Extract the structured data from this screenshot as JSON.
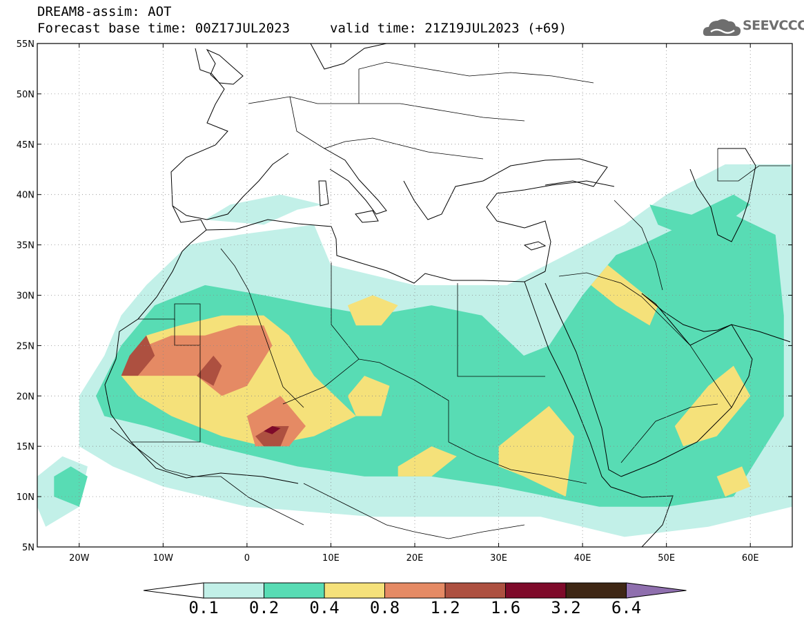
{
  "header": {
    "title_line_1": "DREAM8-assim: AOT",
    "title_line_2": "Forecast base time: 00Z17JUL2023",
    "valid_time": "valid time: 21Z19JUL2023 (+69)"
  },
  "logo": {
    "icon": "cloud-logo-icon",
    "text": "SEEVCCC"
  },
  "map": {
    "projection": "lat-lon",
    "lon_range": [
      -25,
      65
    ],
    "lat_range": [
      5,
      55
    ],
    "grid": "dotted",
    "lat_ticks": [
      {
        "value": 55,
        "label": "55N"
      },
      {
        "value": 50,
        "label": "50N"
      },
      {
        "value": 45,
        "label": "45N"
      },
      {
        "value": 40,
        "label": "40N"
      },
      {
        "value": 35,
        "label": "35N"
      },
      {
        "value": 30,
        "label": "30N"
      },
      {
        "value": 25,
        "label": "25N"
      },
      {
        "value": 20,
        "label": "20N"
      },
      {
        "value": 15,
        "label": "15N"
      },
      {
        "value": 10,
        "label": "10N"
      },
      {
        "value": 5,
        "label": "5N"
      }
    ],
    "lon_ticks": [
      {
        "value": -20,
        "label": "20W"
      },
      {
        "value": -10,
        "label": "10W"
      },
      {
        "value": 0,
        "label": "0"
      },
      {
        "value": 10,
        "label": "10E"
      },
      {
        "value": 20,
        "label": "20E"
      },
      {
        "value": 30,
        "label": "30E"
      },
      {
        "value": 40,
        "label": "40E"
      },
      {
        "value": 50,
        "label": "50E"
      },
      {
        "value": 60,
        "label": "60E"
      }
    ]
  },
  "colorbar": {
    "labels": [
      "0.1",
      "0.2",
      "0.4",
      "0.8",
      "1.2",
      "1.6",
      "3.2",
      "6.4"
    ],
    "below_color": "#ffffff",
    "above_color": "#8f6fae",
    "colors": [
      "#c2f0e8",
      "#58dcb4",
      "#f5e17a",
      "#e58a64",
      "#ad5040",
      "#7e0a2a",
      "#3e2614"
    ]
  },
  "chart_data": {
    "type": "heatmap",
    "variable": "AOT",
    "regions": [
      {
        "level": 0.1,
        "polygon": [
          [
            -20,
            20
          ],
          [
            -17,
            24
          ],
          [
            -15,
            28
          ],
          [
            -12,
            31
          ],
          [
            -7,
            35
          ],
          [
            -1,
            36
          ],
          [
            8,
            37
          ],
          [
            10,
            33
          ],
          [
            20,
            31
          ],
          [
            31,
            31
          ],
          [
            38,
            34
          ],
          [
            45,
            37
          ],
          [
            50,
            40
          ],
          [
            57,
            43
          ],
          [
            65,
            43
          ],
          [
            65,
            9
          ],
          [
            55,
            7
          ],
          [
            45,
            6
          ],
          [
            35,
            8
          ],
          [
            25,
            8
          ],
          [
            15,
            8
          ],
          [
            0,
            9
          ],
          [
            -10,
            11
          ],
          [
            -16,
            13
          ],
          [
            -20,
            15
          ]
        ]
      },
      {
        "level": 0.1,
        "polygon": [
          [
            -25,
            12
          ],
          [
            -22,
            14
          ],
          [
            -19,
            13
          ],
          [
            -20,
            9
          ],
          [
            -24,
            7
          ],
          [
            -25,
            9
          ]
        ]
      },
      {
        "level": 0.1,
        "polygon": [
          [
            -5,
            37.5
          ],
          [
            2,
            37
          ],
          [
            6,
            38.5
          ],
          [
            9,
            39
          ],
          [
            4,
            40
          ],
          [
            -2,
            39
          ]
        ]
      },
      {
        "level": 0.2,
        "polygon": [
          [
            -18,
            20
          ],
          [
            -15,
            25
          ],
          [
            -11,
            29
          ],
          [
            -5,
            31
          ],
          [
            2,
            30
          ],
          [
            8,
            29
          ],
          [
            15,
            28
          ],
          [
            22,
            29
          ],
          [
            28,
            28
          ],
          [
            33,
            24
          ],
          [
            36,
            25
          ],
          [
            40,
            30
          ],
          [
            44,
            34
          ],
          [
            47,
            35
          ],
          [
            52,
            37
          ],
          [
            58,
            38
          ],
          [
            63,
            36
          ],
          [
            64,
            28
          ],
          [
            64,
            18
          ],
          [
            58,
            10
          ],
          [
            50,
            9
          ],
          [
            42,
            9
          ],
          [
            36,
            10
          ],
          [
            30,
            11
          ],
          [
            22,
            12
          ],
          [
            14,
            12
          ],
          [
            6,
            13
          ],
          [
            -4,
            15
          ],
          [
            -12,
            17
          ],
          [
            -17,
            18
          ]
        ]
      },
      {
        "level": 0.2,
        "polygon": [
          [
            -23,
            12
          ],
          [
            -21,
            13
          ],
          [
            -19,
            12
          ],
          [
            -20,
            9
          ],
          [
            -23,
            10
          ]
        ]
      },
      {
        "level": 0.2,
        "polygon": [
          [
            48,
            39
          ],
          [
            53,
            38
          ],
          [
            58,
            40
          ],
          [
            60,
            39
          ],
          [
            57,
            37
          ],
          [
            52,
            36
          ],
          [
            49,
            37
          ]
        ]
      },
      {
        "level": 0.4,
        "polygon": [
          [
            -15,
            22
          ],
          [
            -12,
            26
          ],
          [
            -8,
            27
          ],
          [
            -3,
            28
          ],
          [
            2,
            28
          ],
          [
            5,
            26
          ],
          [
            8,
            22
          ],
          [
            13,
            18
          ],
          [
            8,
            16
          ],
          [
            2,
            15
          ],
          [
            -3,
            16
          ],
          [
            -9,
            18
          ],
          [
            -13,
            20
          ]
        ]
      },
      {
        "level": 0.4,
        "polygon": [
          [
            12,
            20
          ],
          [
            14,
            22
          ],
          [
            17,
            21
          ],
          [
            16,
            18
          ],
          [
            13,
            18
          ]
        ]
      },
      {
        "level": 0.4,
        "polygon": [
          [
            12,
            29
          ],
          [
            15,
            30
          ],
          [
            18,
            29
          ],
          [
            16,
            27
          ],
          [
            13,
            27
          ]
        ]
      },
      {
        "level": 0.4,
        "polygon": [
          [
            18,
            13
          ],
          [
            22,
            15
          ],
          [
            25,
            14
          ],
          [
            22,
            12
          ],
          [
            18,
            12
          ]
        ]
      },
      {
        "level": 0.4,
        "polygon": [
          [
            30,
            15
          ],
          [
            36,
            19
          ],
          [
            39,
            16
          ],
          [
            38,
            10
          ],
          [
            33,
            12
          ],
          [
            30,
            13
          ]
        ]
      },
      {
        "level": 0.4,
        "polygon": [
          [
            43,
            33
          ],
          [
            46,
            31
          ],
          [
            49,
            29
          ],
          [
            48,
            27
          ],
          [
            44,
            29
          ],
          [
            41,
            31
          ]
        ]
      },
      {
        "level": 0.4,
        "polygon": [
          [
            51,
            17
          ],
          [
            55,
            21
          ],
          [
            58,
            23
          ],
          [
            60,
            20
          ],
          [
            56,
            16
          ],
          [
            52,
            15
          ]
        ]
      },
      {
        "level": 0.4,
        "polygon": [
          [
            56,
            12
          ],
          [
            59,
            13
          ],
          [
            60,
            11
          ],
          [
            57,
            10
          ]
        ]
      },
      {
        "level": 0.8,
        "polygon": [
          [
            -14,
            22
          ],
          [
            -12,
            25
          ],
          [
            -9,
            26
          ],
          [
            -5,
            26
          ],
          [
            -1,
            27
          ],
          [
            2,
            27
          ],
          [
            3,
            25
          ],
          [
            0,
            21
          ],
          [
            -3,
            20
          ],
          [
            -6,
            22
          ],
          [
            -10,
            22
          ]
        ]
      },
      {
        "level": 0.8,
        "polygon": [
          [
            0,
            18
          ],
          [
            2,
            19
          ],
          [
            4,
            20
          ],
          [
            7,
            17
          ],
          [
            5,
            15
          ],
          [
            1,
            15
          ]
        ]
      },
      {
        "level": 1.2,
        "polygon": [
          [
            -15,
            22
          ],
          [
            -14,
            24
          ],
          [
            -12,
            26
          ],
          [
            -11,
            24
          ],
          [
            -13,
            22
          ]
        ]
      },
      {
        "level": 1.2,
        "polygon": [
          [
            -6,
            22
          ],
          [
            -4,
            24
          ],
          [
            -3,
            23
          ],
          [
            -4,
            21
          ]
        ]
      },
      {
        "level": 1.2,
        "polygon": [
          [
            1,
            16
          ],
          [
            3,
            17
          ],
          [
            5,
            17
          ],
          [
            4,
            15
          ],
          [
            2,
            15
          ]
        ]
      },
      {
        "level": 1.6,
        "polygon": [
          [
            2,
            16.5
          ],
          [
            3,
            17
          ],
          [
            4,
            16.8
          ],
          [
            3,
            16.2
          ]
        ]
      }
    ]
  }
}
